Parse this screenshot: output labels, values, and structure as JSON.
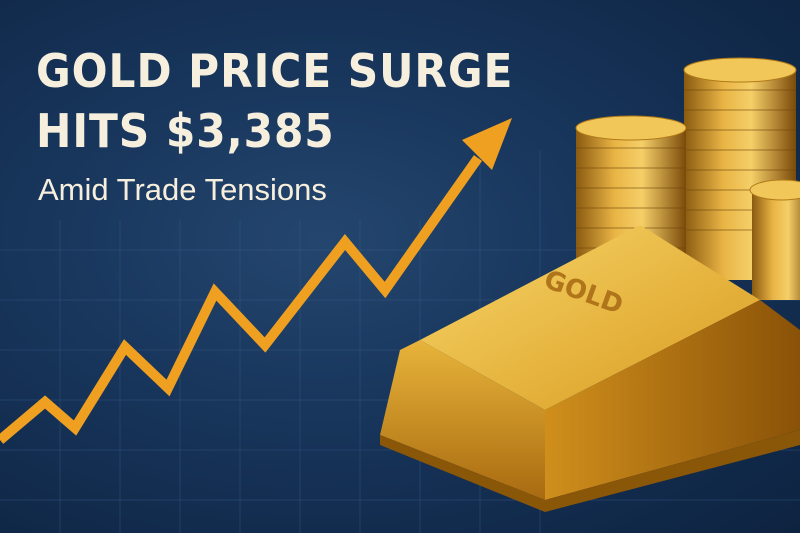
{
  "headline": {
    "line1": "GOLD PRICE SURGE",
    "line2": "HITS $3,385",
    "subtitle": "Amid Trade Tensions"
  },
  "gold_bar": {
    "engraving": "GOLD"
  },
  "colors": {
    "background": "#17345a",
    "text": "#f6efdd",
    "arrow": "#f0a020",
    "gold": "#e0a82a"
  }
}
